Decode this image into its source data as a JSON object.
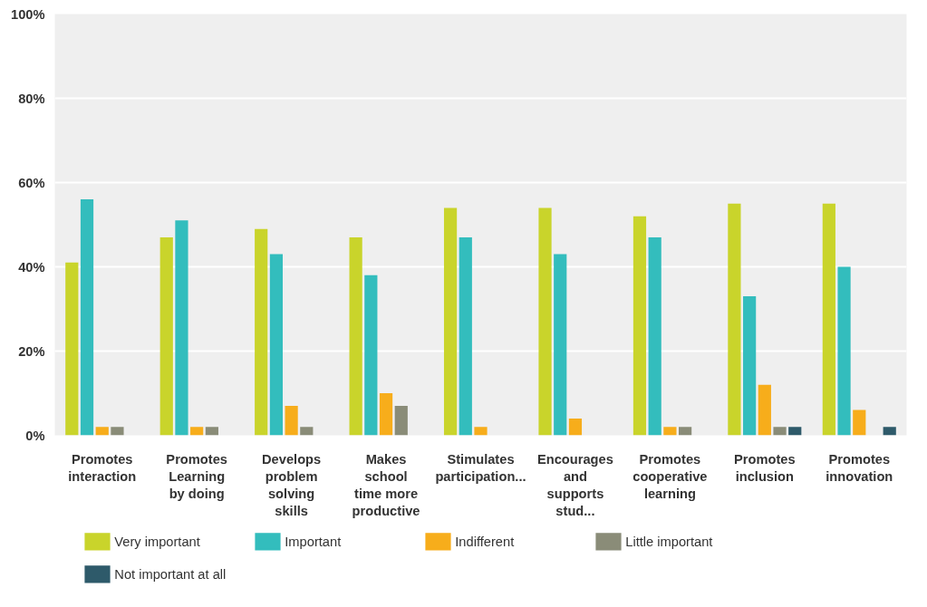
{
  "chart_data": {
    "type": "bar",
    "categories": [
      "Promotes interaction",
      "Promotes Learning by doing",
      "Develops problem solving skills",
      "Makes school time more productive",
      "Stimulates participation...",
      "Encourages and supports stud...",
      "Promotes cooperative learning",
      "Promotes inclusion",
      "Promotes innovation"
    ],
    "series": [
      {
        "name": "Very important",
        "color": "#c9d42b",
        "values": [
          41,
          47,
          49,
          47,
          54,
          54,
          52,
          55,
          55
        ]
      },
      {
        "name": "Important",
        "color": "#33bdbd",
        "values": [
          56,
          51,
          43,
          38,
          47,
          43,
          47,
          33,
          40
        ]
      },
      {
        "name": "Indifferent",
        "color": "#f7ad1b",
        "values": [
          2,
          2,
          7,
          10,
          2,
          4,
          2,
          12,
          6
        ]
      },
      {
        "name": "Little important",
        "color": "#8a8c78",
        "values": [
          2,
          2,
          2,
          7,
          0,
          0,
          2,
          2,
          0
        ]
      },
      {
        "name": "Not important at all",
        "color": "#2e5a6a",
        "values": [
          0,
          0,
          0,
          0,
          0,
          0,
          0,
          2,
          2
        ]
      }
    ],
    "ylim": [
      0,
      100
    ],
    "yticks": [
      {
        "value": 0,
        "label": "0%"
      },
      {
        "value": 20,
        "label": "20%"
      },
      {
        "value": 40,
        "label": "40%"
      },
      {
        "value": 60,
        "label": "60%"
      },
      {
        "value": 80,
        "label": "80%"
      },
      {
        "value": 100,
        "label": "100%"
      }
    ],
    "grid": "y",
    "legend": "bottom"
  }
}
